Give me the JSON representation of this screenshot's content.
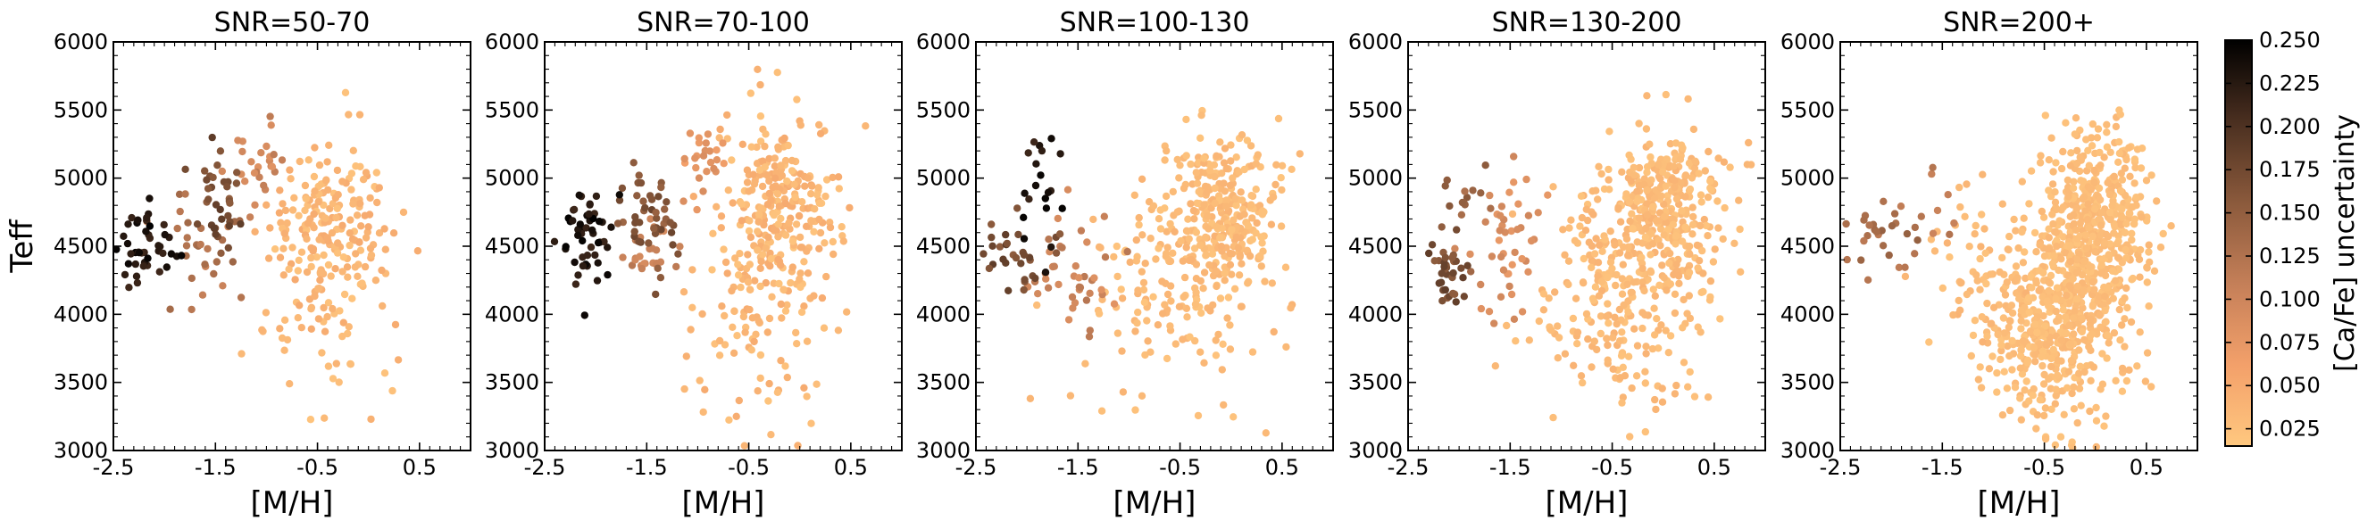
{
  "figure": {
    "ylabel": "Teff",
    "xlabel": "[M/H]"
  },
  "colorbar": {
    "label": "[Ca/Fe] uncertainty",
    "min": 0.015,
    "max": 0.25,
    "ticks": [
      "0.250",
      "0.225",
      "0.200",
      "0.175",
      "0.150",
      "0.125",
      "0.100",
      "0.075",
      "0.050",
      "0.025"
    ],
    "tick_values": [
      0.25,
      0.225,
      0.2,
      0.175,
      0.15,
      0.125,
      0.1,
      0.075,
      0.05,
      0.025
    ],
    "colormap_stops": [
      "#ffc87f",
      "#f3a06a",
      "#c47f58",
      "#8b5a3c",
      "#4a2f20",
      "#000000"
    ]
  },
  "chart_data": [
    {
      "type": "scatter",
      "title": "SNR=50-70",
      "xlabel": "[M/H]",
      "ylabel": "Teff",
      "xlim": [
        -2.5,
        1.0
      ],
      "ylim": [
        3000,
        6000
      ],
      "xticks": [
        "-2.5",
        "-1.5",
        "-0.5",
        "0.5"
      ],
      "xtick_values": [
        -2.5,
        -1.5,
        -0.5,
        0.5
      ],
      "yticks": [
        "3000",
        "3500",
        "4000",
        "4500",
        "5000",
        "5500",
        "6000"
      ],
      "ytick_values": [
        3000,
        3500,
        4000,
        4500,
        5000,
        5500,
        6000
      ],
      "clusters": [
        {
          "x": -2.2,
          "y": 4500,
          "sx": 0.18,
          "sy": 130,
          "n": 45,
          "c": [
            0.21,
            0.25
          ]
        },
        {
          "x": -1.45,
          "y": 4800,
          "sx": 0.12,
          "sy": 180,
          "n": 35,
          "c": [
            0.15,
            0.19
          ]
        },
        {
          "x": -1.55,
          "y": 4500,
          "sx": 0.2,
          "sy": 220,
          "n": 30,
          "c": [
            0.1,
            0.14
          ]
        },
        {
          "x": -1.0,
          "y": 5150,
          "sx": 0.15,
          "sy": 150,
          "n": 25,
          "c": [
            0.08,
            0.12
          ]
        },
        {
          "x": -0.35,
          "y": 4700,
          "sx": 0.3,
          "sy": 320,
          "n": 180,
          "c": [
            0.02,
            0.05
          ]
        },
        {
          "x": -0.5,
          "y": 4000,
          "sx": 0.3,
          "sy": 350,
          "n": 60,
          "c": [
            0.02,
            0.05
          ]
        }
      ]
    },
    {
      "type": "scatter",
      "title": "SNR=70-100",
      "xlabel": "[M/H]",
      "ylabel": "",
      "xlim": [
        -2.5,
        1.0
      ],
      "ylim": [
        3000,
        6000
      ],
      "xticks": [
        "-2.5",
        "-1.5",
        "-0.5",
        "0.5"
      ],
      "xtick_values": [
        -2.5,
        -1.5,
        -0.5,
        0.5
      ],
      "yticks": [
        "3000",
        "3500",
        "4000",
        "4500",
        "5000",
        "5500",
        "6000"
      ],
      "ytick_values": [
        3000,
        3500,
        4000,
        4500,
        5000,
        5500,
        6000
      ],
      "clusters": [
        {
          "x": -2.05,
          "y": 4550,
          "sx": 0.15,
          "sy": 200,
          "n": 50,
          "c": [
            0.21,
            0.25
          ]
        },
        {
          "x": -1.45,
          "y": 4700,
          "sx": 0.15,
          "sy": 200,
          "n": 45,
          "c": [
            0.14,
            0.18
          ]
        },
        {
          "x": -1.5,
          "y": 4450,
          "sx": 0.15,
          "sy": 160,
          "n": 25,
          "c": [
            0.09,
            0.12
          ]
        },
        {
          "x": -0.9,
          "y": 5100,
          "sx": 0.15,
          "sy": 150,
          "n": 25,
          "c": [
            0.06,
            0.09
          ]
        },
        {
          "x": -0.2,
          "y": 4750,
          "sx": 0.28,
          "sy": 330,
          "n": 260,
          "c": [
            0.02,
            0.05
          ]
        },
        {
          "x": -0.4,
          "y": 3900,
          "sx": 0.35,
          "sy": 420,
          "n": 90,
          "c": [
            0.02,
            0.05
          ]
        }
      ]
    },
    {
      "type": "scatter",
      "title": "SNR=100-130",
      "xlabel": "[M/H]",
      "ylabel": "",
      "xlim": [
        -2.5,
        1.0
      ],
      "ylim": [
        3000,
        6000
      ],
      "xticks": [
        "-2.5",
        "-1.5",
        "-0.5",
        "0.5"
      ],
      "xtick_values": [
        -2.5,
        -1.5,
        -0.5,
        0.5
      ],
      "yticks": [
        "3000",
        "3500",
        "4000",
        "4500",
        "5000",
        "5500",
        "6000"
      ],
      "ytick_values": [
        3000,
        3500,
        4000,
        4500,
        5000,
        5500,
        6000
      ],
      "clusters": [
        {
          "x": -1.9,
          "y": 4900,
          "sx": 0.12,
          "sy": 250,
          "n": 20,
          "c": [
            0.21,
            0.25
          ]
        },
        {
          "x": -2.1,
          "y": 4450,
          "sx": 0.2,
          "sy": 120,
          "n": 30,
          "c": [
            0.15,
            0.19
          ]
        },
        {
          "x": -1.5,
          "y": 4300,
          "sx": 0.2,
          "sy": 250,
          "n": 40,
          "c": [
            0.08,
            0.12
          ]
        },
        {
          "x": -0.1,
          "y": 4750,
          "sx": 0.3,
          "sy": 300,
          "n": 280,
          "c": [
            0.02,
            0.04
          ]
        },
        {
          "x": -0.6,
          "y": 4200,
          "sx": 0.45,
          "sy": 450,
          "n": 150,
          "c": [
            0.02,
            0.04
          ]
        }
      ]
    },
    {
      "type": "scatter",
      "title": "SNR=130-200",
      "xlabel": "[M/H]",
      "ylabel": "",
      "xlim": [
        -2.5,
        1.0
      ],
      "ylim": [
        3000,
        6000
      ],
      "xticks": [
        "-2.5",
        "-1.5",
        "-0.5",
        "0.5"
      ],
      "xtick_values": [
        -2.5,
        -1.5,
        -0.5,
        0.5
      ],
      "yticks": [
        "3000",
        "3500",
        "4000",
        "4500",
        "5000",
        "5500",
        "6000"
      ],
      "ytick_values": [
        3000,
        3500,
        4000,
        4500,
        5000,
        5500,
        6000
      ],
      "clusters": [
        {
          "x": -2.1,
          "y": 4300,
          "sx": 0.12,
          "sy": 150,
          "n": 35,
          "c": [
            0.15,
            0.19
          ]
        },
        {
          "x": -1.9,
          "y": 4800,
          "sx": 0.18,
          "sy": 200,
          "n": 15,
          "c": [
            0.12,
            0.16
          ]
        },
        {
          "x": -1.55,
          "y": 4400,
          "sx": 0.2,
          "sy": 250,
          "n": 45,
          "c": [
            0.07,
            0.1
          ]
        },
        {
          "x": 0.0,
          "y": 4750,
          "sx": 0.3,
          "sy": 300,
          "n": 350,
          "c": [
            0.02,
            0.04
          ]
        },
        {
          "x": -0.5,
          "y": 4100,
          "sx": 0.45,
          "sy": 400,
          "n": 220,
          "c": [
            0.02,
            0.04
          ]
        }
      ]
    },
    {
      "type": "scatter",
      "title": "SNR=200+",
      "xlabel": "[M/H]",
      "ylabel": "",
      "xlim": [
        -2.5,
        1.0
      ],
      "ylim": [
        3000,
        6000
      ],
      "xticks": [
        "-2.5",
        "-1.5",
        "-0.5",
        "0.5"
      ],
      "xtick_values": [
        -2.5,
        -1.5,
        -0.5,
        0.5
      ],
      "yticks": [
        "3000",
        "3500",
        "4000",
        "4500",
        "5000",
        "5500",
        "6000"
      ],
      "ytick_values": [
        3000,
        3500,
        4000,
        4500,
        5000,
        5500,
        6000
      ],
      "clusters": [
        {
          "x": -2.05,
          "y": 4550,
          "sx": 0.2,
          "sy": 150,
          "n": 25,
          "c": [
            0.11,
            0.15
          ]
        },
        {
          "x": -1.6,
          "y": 4750,
          "sx": 0.15,
          "sy": 150,
          "n": 10,
          "c": [
            0.1,
            0.13
          ]
        },
        {
          "x": 0.0,
          "y": 4650,
          "sx": 0.25,
          "sy": 350,
          "n": 450,
          "c": [
            0.02,
            0.035
          ]
        },
        {
          "x": -0.4,
          "y": 3900,
          "sx": 0.35,
          "sy": 350,
          "n": 450,
          "c": [
            0.02,
            0.035
          ]
        },
        {
          "x": -1.0,
          "y": 4300,
          "sx": 0.35,
          "sy": 350,
          "n": 60,
          "c": [
            0.02,
            0.04
          ]
        }
      ]
    }
  ]
}
